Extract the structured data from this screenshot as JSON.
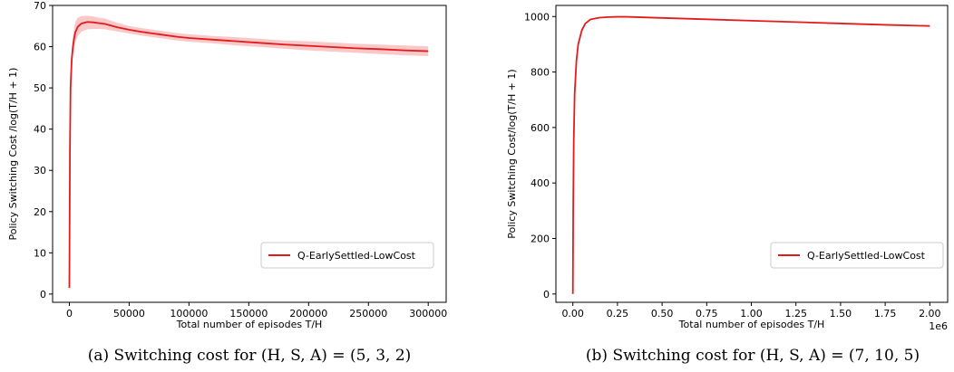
{
  "chart_data": [
    {
      "type": "line",
      "caption": "(a) Switching cost for (H, S, A) = (5, 3, 2)",
      "xlabel": "Total number of episodes T/H",
      "ylabel": "Policy Switching Cost /log(T/H + 1)",
      "xlim": [
        -14000,
        315000
      ],
      "ylim": [
        -2,
        70
      ],
      "xticks": [
        0,
        50000,
        100000,
        150000,
        200000,
        250000,
        300000
      ],
      "xtick_labels": [
        "0",
        "50000",
        "100000",
        "150000",
        "200000",
        "250000",
        "300000"
      ],
      "yticks": [
        0,
        10,
        20,
        30,
        40,
        50,
        60,
        70
      ],
      "ytick_labels": [
        "0",
        "10",
        "20",
        "30",
        "40",
        "50",
        "60",
        "70"
      ],
      "grid": false,
      "legend_position": "lower-right",
      "series": [
        {
          "name": "Q-EarlySettled-LowCost",
          "color": "#e41a1c",
          "band_color": "#f7b6b6",
          "x": [
            0,
            500,
            1000,
            2000,
            3000,
            4000,
            5000,
            7000,
            10000,
            15000,
            20000,
            25000,
            30000,
            40000,
            50000,
            60000,
            70000,
            80000,
            90000,
            100000,
            120000,
            140000,
            160000,
            180000,
            200000,
            220000,
            240000,
            260000,
            280000,
            300000
          ],
          "y": [
            1.5,
            35,
            50,
            57,
            60,
            62,
            63.5,
            64.8,
            65.6,
            66,
            65.9,
            65.7,
            65.5,
            64.7,
            64.1,
            63.6,
            63.2,
            62.8,
            62.4,
            62.1,
            61.7,
            61.3,
            60.9,
            60.5,
            60.2,
            59.9,
            59.6,
            59.4,
            59.1,
            58.9
          ],
          "y_lower": [
            1.5,
            33,
            48,
            55,
            57.5,
            59.5,
            61,
            62.5,
            63.6,
            64.2,
            64.3,
            64.3,
            64.2,
            63.7,
            63.2,
            62.7,
            62.3,
            61.9,
            61.5,
            61.2,
            60.8,
            60.3,
            59.9,
            59.5,
            59.1,
            58.8,
            58.5,
            58.2,
            57.9,
            57.7
          ],
          "y_upper": [
            1.5,
            37,
            52,
            59,
            62.5,
            64.5,
            66,
            67,
            67.4,
            67.5,
            67.3,
            67,
            66.8,
            65.8,
            65,
            64.5,
            64.1,
            63.7,
            63.3,
            63,
            62.6,
            62.3,
            61.9,
            61.5,
            61.3,
            61,
            60.7,
            60.5,
            60.3,
            60.1
          ]
        }
      ]
    },
    {
      "type": "line",
      "caption": "(b) Switching cost for (H, S, A) = (7, 10, 5)",
      "xlabel": "Total number of episodes T/H",
      "ylabel": "Policy Switching Cost/log(T/H + 1)",
      "x_offset_label": "1e6",
      "xlim": [
        -0.095,
        2.1
      ],
      "ylim": [
        -30,
        1040
      ],
      "xticks": [
        0,
        0.25,
        0.5,
        0.75,
        1.0,
        1.25,
        1.5,
        1.75,
        2.0
      ],
      "xtick_labels": [
        "0.00",
        "0.25",
        "0.50",
        "0.75",
        "1.00",
        "1.25",
        "1.50",
        "1.75",
        "2.00"
      ],
      "yticks": [
        0,
        200,
        400,
        600,
        800,
        1000
      ],
      "ytick_labels": [
        "0",
        "200",
        "400",
        "600",
        "800",
        "1000"
      ],
      "grid": false,
      "legend_position": "lower-right",
      "series": [
        {
          "name": "Q-EarlySettled-LowCost",
          "color": "#e41a1c",
          "x": [
            0,
            0.002,
            0.005,
            0.01,
            0.02,
            0.03,
            0.05,
            0.07,
            0.1,
            0.15,
            0.2,
            0.25,
            0.3,
            0.4,
            0.5,
            0.75,
            1.0,
            1.25,
            1.5,
            1.75,
            2.0
          ],
          "y": [
            0,
            300,
            550,
            720,
            840,
            900,
            950,
            975,
            990,
            996,
            998,
            999,
            999,
            997,
            995,
            990,
            985,
            980,
            975,
            970,
            966
          ]
        }
      ]
    }
  ]
}
